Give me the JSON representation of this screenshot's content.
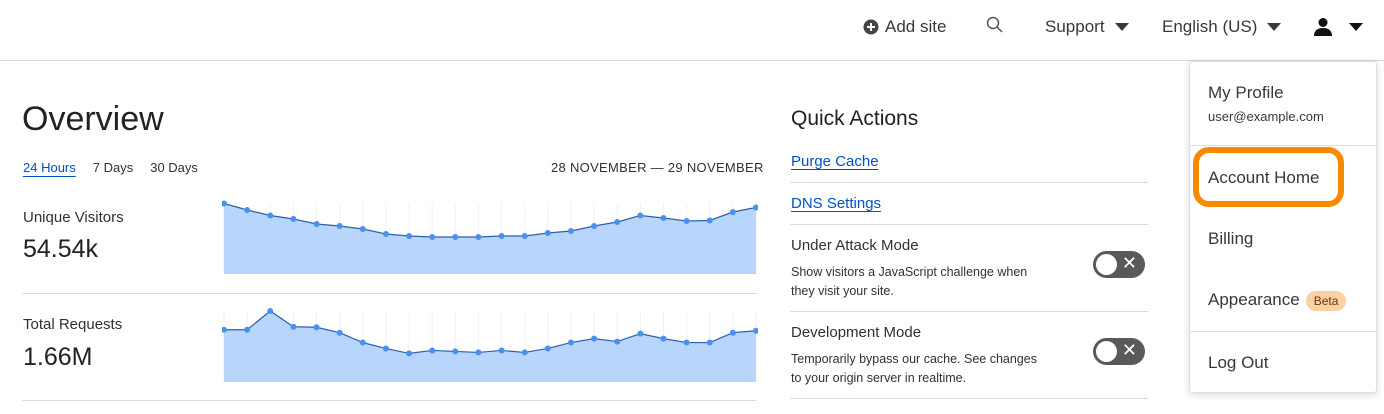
{
  "topbar": {
    "add_site": "Add site",
    "support": "Support",
    "language": "English (US)"
  },
  "overview": {
    "title": "Overview",
    "tabs": [
      "24 Hours",
      "7 Days",
      "30 Days"
    ],
    "active_tab": "24 Hours",
    "date_range": "28 NOVEMBER — 29 NOVEMBER"
  },
  "metrics": [
    {
      "label": "Unique Visitors",
      "value": "54.54k"
    },
    {
      "label": "Total Requests",
      "value": "1.66M"
    }
  ],
  "chart_data": [
    {
      "type": "area",
      "series": [
        {
          "values": [
            70.5,
            64,
            58.5,
            55,
            50,
            48,
            45,
            40,
            38,
            37,
            37,
            37,
            38,
            38,
            41,
            43,
            48,
            52,
            58.5,
            56,
            53,
            53.5,
            62,
            66.5
          ]
        }
      ],
      "ylim": [
        0,
        71
      ],
      "grid": "vertical",
      "color": "#4a90f0",
      "fill": "#b8d5fb"
    },
    {
      "type": "area",
      "series": [
        {
          "values": [
            53,
            53,
            72,
            56,
            55.5,
            50,
            40,
            34,
            29,
            32,
            31,
            30,
            32,
            30,
            34,
            40,
            44,
            41,
            49,
            44,
            40,
            40,
            50,
            52
          ]
        }
      ],
      "ylim": [
        0,
        72
      ],
      "grid": "vertical",
      "color": "#4a90f0",
      "fill": "#b8d5fb"
    }
  ],
  "quick_actions": {
    "title": "Quick Actions",
    "links": [
      "Purge Cache",
      "DNS Settings"
    ],
    "toggles": [
      {
        "title": "Under Attack Mode",
        "desc": "Show visitors a JavaScript challenge when they visit your site.",
        "on": false
      },
      {
        "title": "Development Mode",
        "desc": "Temporarily bypass our cache. See changes to your origin server in realtime.",
        "on": false
      }
    ]
  },
  "menu": {
    "profile": "My Profile",
    "email": "user@example.com",
    "account_home": "Account Home",
    "billing": "Billing",
    "appearance": "Appearance",
    "beta": "Beta",
    "logout": "Log Out",
    "highlight_color": "#f68a00"
  }
}
